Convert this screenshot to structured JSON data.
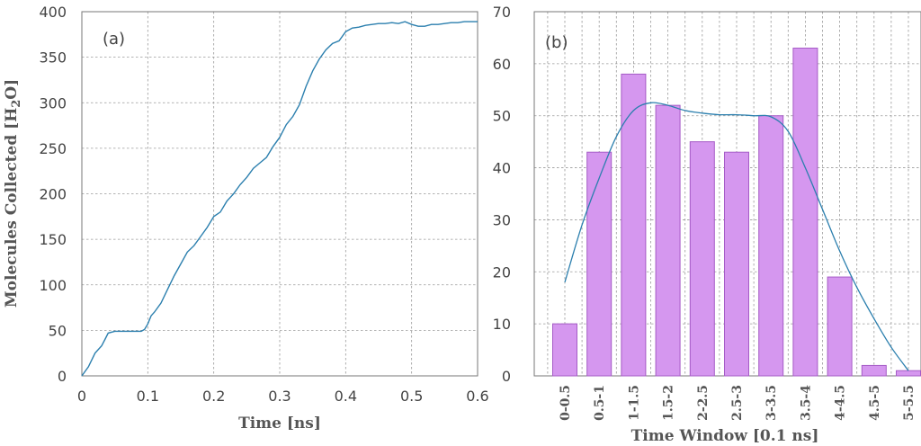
{
  "chart_data": [
    {
      "type": "line",
      "panel_label": "(a)",
      "xlabel": "Time [ns]",
      "ylabel_main": "Molecules Collected [H",
      "ylabel_sub": "2",
      "ylabel_end": "O]",
      "xlim": [
        0,
        0.6
      ],
      "ylim": [
        0,
        400
      ],
      "xticks": [
        "0",
        "0.1",
        "0.2",
        "0.3",
        "0.4",
        "0.5",
        "0.6"
      ],
      "yticks": [
        "0",
        "50",
        "100",
        "150",
        "200",
        "250",
        "300",
        "350",
        "400"
      ],
      "grid": true,
      "line_color": "#2b7fae",
      "x": [
        0,
        0.01,
        0.02,
        0.03,
        0.035,
        0.04,
        0.05,
        0.06,
        0.07,
        0.08,
        0.09,
        0.095,
        0.1,
        0.105,
        0.11,
        0.12,
        0.13,
        0.14,
        0.15,
        0.16,
        0.17,
        0.18,
        0.19,
        0.2,
        0.21,
        0.22,
        0.23,
        0.24,
        0.25,
        0.26,
        0.27,
        0.28,
        0.29,
        0.3,
        0.31,
        0.32,
        0.33,
        0.34,
        0.35,
        0.36,
        0.37,
        0.38,
        0.39,
        0.4,
        0.41,
        0.42,
        0.43,
        0.44,
        0.45,
        0.46,
        0.47,
        0.48,
        0.49,
        0.5,
        0.51,
        0.52,
        0.53,
        0.54,
        0.55,
        0.56,
        0.57,
        0.58,
        0.59,
        0.6
      ],
      "y": [
        0,
        10,
        25,
        33,
        40,
        47,
        49,
        49,
        49,
        49,
        49,
        51,
        57,
        66,
        70,
        80,
        95,
        110,
        123,
        136,
        143,
        153,
        163,
        175,
        180,
        192,
        200,
        210,
        218,
        228,
        234,
        240,
        252,
        262,
        276,
        285,
        298,
        318,
        335,
        348,
        358,
        365,
        368,
        378,
        382,
        383,
        385,
        386,
        387,
        387,
        388,
        387,
        389,
        386,
        384,
        384,
        386,
        386,
        387,
        388,
        388,
        389,
        389,
        389
      ]
    },
    {
      "type": "bar",
      "panel_label": "(b)",
      "xlabel": "Time Window [0.1 ns]",
      "ylim": [
        0,
        70
      ],
      "yticks": [
        "0",
        "10",
        "20",
        "30",
        "40",
        "50",
        "60",
        "70"
      ],
      "grid": true,
      "bar_color": "#d597ef",
      "bar_edge": "#a55bc6",
      "curve_color": "#2b7fae",
      "categories": [
        "0-0.5",
        "0.5-1",
        "1-1.5",
        "1.5-2",
        "2-2.5",
        "2.5-3",
        "3-3.5",
        "3.5-4",
        "4-4.5",
        "4.5-5",
        "5-5.5"
      ],
      "values": [
        10,
        43,
        58,
        52,
        45,
        43,
        50,
        63,
        19,
        2,
        1
      ],
      "curve": [
        [
          0,
          18
        ],
        [
          0.5,
          29
        ],
        [
          1,
          38
        ],
        [
          1.5,
          46
        ],
        [
          2,
          51
        ],
        [
          2.5,
          52.5
        ],
        [
          3,
          52
        ],
        [
          3.5,
          51
        ],
        [
          4,
          50.5
        ],
        [
          4.5,
          50.2
        ],
        [
          5,
          50.2
        ],
        [
          5.5,
          50
        ],
        [
          6,
          49.8
        ],
        [
          6.5,
          47
        ],
        [
          7,
          40
        ],
        [
          7.5,
          32
        ],
        [
          8,
          24
        ],
        [
          8.5,
          17
        ],
        [
          9,
          11
        ],
        [
          9.5,
          5.5
        ],
        [
          10,
          1
        ]
      ]
    }
  ]
}
